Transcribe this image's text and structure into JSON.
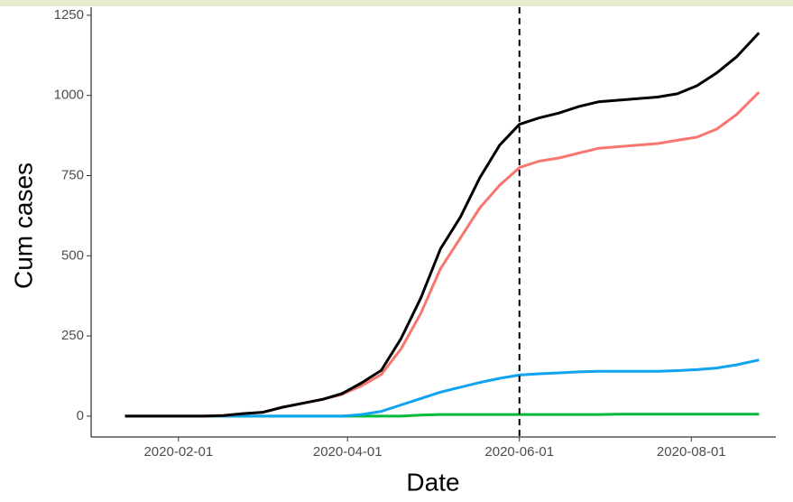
{
  "chart_data": {
    "type": "line",
    "x_title": "Date",
    "y_title": "Cum cases",
    "xlim": [
      "2020-01-01",
      "2020-08-31"
    ],
    "ylim": [
      -65,
      1275
    ],
    "xticks": [
      "2020-02-01",
      "2020-04-01",
      "2020-06-01",
      "2020-08-01"
    ],
    "yticks": [
      0,
      250,
      500,
      750,
      1000,
      1250
    ],
    "vline": "2020-06-01",
    "x": [
      "2020-01-13",
      "2020-01-27",
      "2020-02-10",
      "2020-02-17",
      "2020-02-24",
      "2020-03-02",
      "2020-03-09",
      "2020-03-16",
      "2020-03-23",
      "2020-03-30",
      "2020-04-06",
      "2020-04-13",
      "2020-04-20",
      "2020-04-27",
      "2020-05-04",
      "2020-05-11",
      "2020-05-18",
      "2020-05-25",
      "2020-06-01",
      "2020-06-08",
      "2020-06-15",
      "2020-06-22",
      "2020-06-29",
      "2020-07-06",
      "2020-07-13",
      "2020-07-20",
      "2020-07-27",
      "2020-08-03",
      "2020-08-10",
      "2020-08-17",
      "2020-08-25"
    ],
    "series": [
      {
        "color": "#00ba38",
        "values": [
          0,
          0,
          0,
          0,
          0,
          0,
          0,
          0,
          0,
          0,
          0,
          0,
          0,
          3,
          5,
          5,
          5,
          5,
          5,
          5,
          5,
          5,
          5,
          6,
          6,
          6,
          6,
          6,
          6,
          6,
          6
        ]
      },
      {
        "color": "#0fa3f0",
        "values": [
          0,
          0,
          0,
          0,
          0,
          0,
          0,
          0,
          0,
          0,
          5,
          15,
          35,
          55,
          75,
          90,
          105,
          118,
          128,
          132,
          135,
          138,
          140,
          140,
          140,
          140,
          142,
          145,
          150,
          160,
          175
        ]
      },
      {
        "color": "#f8766d",
        "values": [
          0,
          0,
          0,
          2,
          8,
          12,
          28,
          40,
          52,
          68,
          95,
          130,
          210,
          320,
          460,
          555,
          650,
          720,
          775,
          795,
          805,
          820,
          835,
          840,
          845,
          850,
          860,
          870,
          895,
          940,
          1010
        ]
      },
      {
        "color": "#000000",
        "values": [
          0,
          0,
          0,
          2,
          8,
          12,
          28,
          40,
          52,
          70,
          104,
          143,
          242,
          368,
          522,
          620,
          744,
          845,
          910,
          930,
          945,
          965,
          980,
          985,
          990,
          995,
          1005,
          1030,
          1070,
          1120,
          1195
        ]
      }
    ]
  }
}
